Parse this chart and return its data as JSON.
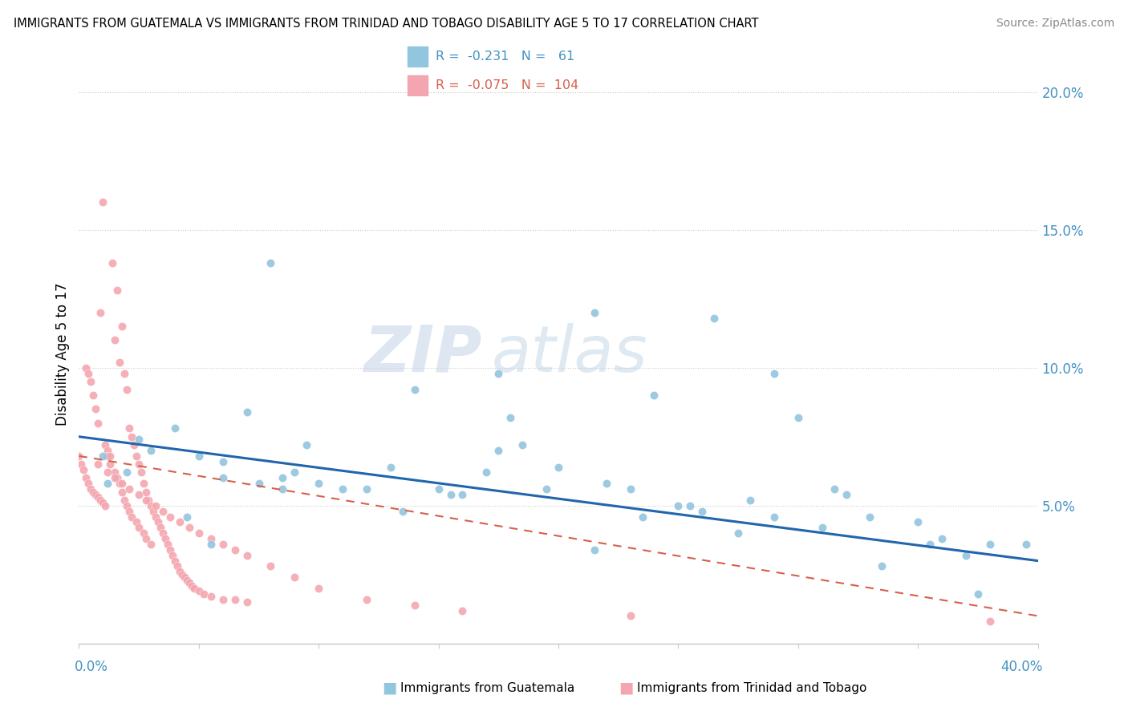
{
  "title": "IMMIGRANTS FROM GUATEMALA VS IMMIGRANTS FROM TRINIDAD AND TOBAGO DISABILITY AGE 5 TO 17 CORRELATION CHART",
  "source": "Source: ZipAtlas.com",
  "ylabel": "Disability Age 5 to 17",
  "right_yticks": [
    "20.0%",
    "15.0%",
    "10.0%",
    "5.0%"
  ],
  "right_ytick_vals": [
    0.2,
    0.15,
    0.1,
    0.05
  ],
  "legend1_R": "-0.231",
  "legend1_N": "61",
  "legend2_R": "-0.075",
  "legend2_N": "104",
  "color_blue": "#92c5de",
  "color_pink": "#f4a6b0",
  "color_blue_dark": "#4393c3",
  "color_pink_dark": "#d6604d",
  "color_trend_blue": "#2166ac",
  "color_trend_pink": "#d6604d",
  "watermark_zip": "ZIP",
  "watermark_atlas": "atlas",
  "xlim": [
    0.0,
    0.4
  ],
  "ylim": [
    0.0,
    0.21
  ],
  "blue_scatter_x": [
    0.01,
    0.012,
    0.08,
    0.215,
    0.265,
    0.29,
    0.24,
    0.18,
    0.175,
    0.14,
    0.3,
    0.37,
    0.05,
    0.06,
    0.075,
    0.085,
    0.09,
    0.1,
    0.11,
    0.12,
    0.135,
    0.15,
    0.16,
    0.17,
    0.185,
    0.2,
    0.22,
    0.23,
    0.25,
    0.26,
    0.28,
    0.31,
    0.32,
    0.33,
    0.35,
    0.36,
    0.38,
    0.03,
    0.04,
    0.06,
    0.07,
    0.13,
    0.155,
    0.175,
    0.195,
    0.215,
    0.235,
    0.255,
    0.275,
    0.29,
    0.315,
    0.335,
    0.355,
    0.375,
    0.395,
    0.02,
    0.025,
    0.045,
    0.055,
    0.085,
    0.095
  ],
  "blue_scatter_y": [
    0.068,
    0.058,
    0.138,
    0.12,
    0.118,
    0.098,
    0.09,
    0.082,
    0.098,
    0.092,
    0.082,
    0.032,
    0.068,
    0.066,
    0.058,
    0.06,
    0.062,
    0.058,
    0.056,
    0.056,
    0.048,
    0.056,
    0.054,
    0.062,
    0.072,
    0.064,
    0.058,
    0.056,
    0.05,
    0.048,
    0.052,
    0.042,
    0.054,
    0.046,
    0.044,
    0.038,
    0.036,
    0.07,
    0.078,
    0.06,
    0.084,
    0.064,
    0.054,
    0.07,
    0.056,
    0.034,
    0.046,
    0.05,
    0.04,
    0.046,
    0.056,
    0.028,
    0.036,
    0.018,
    0.036,
    0.062,
    0.074,
    0.046,
    0.036,
    0.056,
    0.072
  ],
  "pink_scatter_x": [
    0.0,
    0.001,
    0.002,
    0.003,
    0.003,
    0.004,
    0.004,
    0.005,
    0.005,
    0.006,
    0.006,
    0.007,
    0.007,
    0.008,
    0.008,
    0.009,
    0.009,
    0.01,
    0.01,
    0.011,
    0.011,
    0.012,
    0.012,
    0.013,
    0.013,
    0.014,
    0.015,
    0.015,
    0.016,
    0.016,
    0.017,
    0.017,
    0.018,
    0.018,
    0.019,
    0.019,
    0.02,
    0.02,
    0.021,
    0.021,
    0.022,
    0.022,
    0.023,
    0.024,
    0.024,
    0.025,
    0.025,
    0.026,
    0.027,
    0.027,
    0.028,
    0.028,
    0.029,
    0.03,
    0.03,
    0.031,
    0.032,
    0.033,
    0.034,
    0.035,
    0.036,
    0.037,
    0.038,
    0.039,
    0.04,
    0.041,
    0.042,
    0.043,
    0.044,
    0.045,
    0.046,
    0.047,
    0.048,
    0.05,
    0.052,
    0.055,
    0.06,
    0.065,
    0.07,
    0.008,
    0.012,
    0.015,
    0.018,
    0.021,
    0.025,
    0.028,
    0.032,
    0.035,
    0.038,
    0.042,
    0.046,
    0.05,
    0.055,
    0.06,
    0.065,
    0.07,
    0.08,
    0.09,
    0.1,
    0.12,
    0.14,
    0.16,
    0.23,
    0.38
  ],
  "pink_scatter_y": [
    0.068,
    0.065,
    0.063,
    0.1,
    0.06,
    0.098,
    0.058,
    0.095,
    0.056,
    0.09,
    0.055,
    0.085,
    0.054,
    0.08,
    0.053,
    0.12,
    0.052,
    0.16,
    0.051,
    0.072,
    0.05,
    0.07,
    0.068,
    0.068,
    0.065,
    0.138,
    0.062,
    0.11,
    0.128,
    0.06,
    0.102,
    0.058,
    0.115,
    0.055,
    0.098,
    0.052,
    0.092,
    0.05,
    0.078,
    0.048,
    0.075,
    0.046,
    0.072,
    0.068,
    0.044,
    0.065,
    0.042,
    0.062,
    0.058,
    0.04,
    0.055,
    0.038,
    0.052,
    0.05,
    0.036,
    0.048,
    0.046,
    0.044,
    0.042,
    0.04,
    0.038,
    0.036,
    0.034,
    0.032,
    0.03,
    0.028,
    0.026,
    0.025,
    0.024,
    0.023,
    0.022,
    0.021,
    0.02,
    0.019,
    0.018,
    0.017,
    0.016,
    0.016,
    0.015,
    0.065,
    0.062,
    0.06,
    0.058,
    0.056,
    0.054,
    0.052,
    0.05,
    0.048,
    0.046,
    0.044,
    0.042,
    0.04,
    0.038,
    0.036,
    0.034,
    0.032,
    0.028,
    0.024,
    0.02,
    0.016,
    0.014,
    0.012,
    0.01,
    0.008
  ]
}
